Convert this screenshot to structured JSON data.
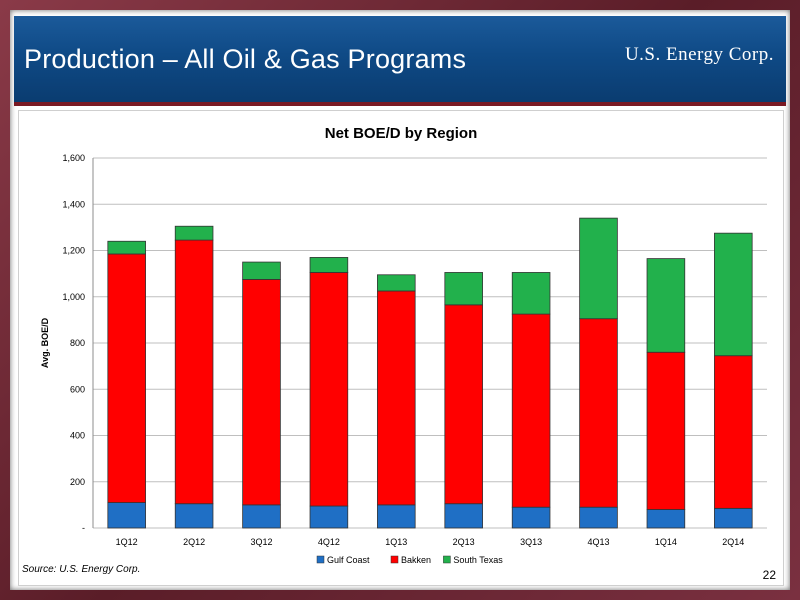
{
  "slide": {
    "title": "Production – All Oil & Gas Programs",
    "logo_text": "U.S. Energy Corp.",
    "source": "Source: U.S. Energy Corp.",
    "page_number": "22"
  },
  "colors": {
    "header_blue": "#0f4a86",
    "frame_maroon": "#6b2a35",
    "gulf_coast": "#1f6fc5",
    "bakken": "#ff0000",
    "south_texas": "#22b14c"
  },
  "chart_data": {
    "type": "bar",
    "stacked": true,
    "title": "Net BOE/D by Region",
    "ylabel": "Avg. BOE/D",
    "xlabel": "",
    "ylim": [
      0,
      1600
    ],
    "yticks": [
      0,
      200,
      400,
      600,
      800,
      1000,
      1200,
      1400,
      1600
    ],
    "ytick_labels": [
      "-",
      "200",
      "400",
      "600",
      "800",
      "1,000",
      "1,200",
      "1,400",
      "1,600"
    ],
    "grid": true,
    "legend_position": "bottom",
    "categories": [
      "1Q12",
      "2Q12",
      "3Q12",
      "4Q12",
      "1Q13",
      "2Q13",
      "3Q13",
      "4Q13",
      "1Q14",
      "2Q14"
    ],
    "series": [
      {
        "name": "Gulf Coast",
        "color": "#1f6fc5",
        "values": [
          110,
          105,
          100,
          95,
          100,
          105,
          90,
          90,
          80,
          85
        ]
      },
      {
        "name": "Bakken",
        "color": "#ff0000",
        "values": [
          1075,
          1140,
          975,
          1010,
          925,
          860,
          835,
          815,
          680,
          660
        ]
      },
      {
        "name": "South Texas",
        "color": "#22b14c",
        "values": [
          55,
          60,
          75,
          65,
          70,
          140,
          180,
          435,
          405,
          530
        ]
      }
    ]
  }
}
